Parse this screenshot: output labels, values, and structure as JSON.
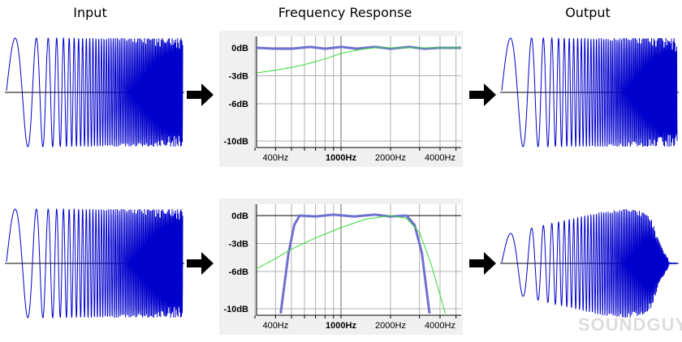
{
  "titles": {
    "input": "Input",
    "freq": "Frequency Response",
    "output": "Output"
  },
  "watermark": "SOUNDGUYS",
  "colors": {
    "wave": "#0000cc",
    "response": "#7070d0",
    "reference": "#33dd33",
    "grid": "#b0b0b0",
    "panel": "#f0f0f0"
  },
  "chart_data": [
    {
      "type": "line",
      "xscale": "log",
      "xlim": [
        307,
        5370
      ],
      "ylim": [
        -10.5,
        1.5
      ],
      "grid": true,
      "y_ticks": [
        "0dB",
        "-3dB",
        "-6dB",
        "-10dB"
      ],
      "y_tick_values": [
        0,
        -3,
        -6,
        -10
      ],
      "x_ticks": [
        "400Hz",
        "1000Hz",
        "2000Hz",
        "4000Hz"
      ],
      "x_tick_values": [
        400,
        1000,
        2000,
        4000
      ],
      "series": [
        {
          "color": "#7070d0",
          "x": [
            307,
            400,
            500,
            650,
            800,
            1000,
            1250,
            1600,
            2000,
            2600,
            3200,
            4000,
            5370
          ],
          "y": [
            0,
            -0.1,
            -0.1,
            0.1,
            -0.1,
            0.1,
            -0.1,
            0.1,
            -0.1,
            0.1,
            -0.1,
            0,
            0
          ]
        },
        {
          "color": "#33dd33",
          "x": [
            307,
            400,
            500,
            600,
            800,
            1000,
            1300,
            1600,
            2000,
            5370
          ],
          "y": [
            -2.7,
            -2.4,
            -2.1,
            -1.8,
            -1.2,
            -0.6,
            -0.2,
            0,
            0,
            0
          ]
        }
      ]
    },
    {
      "type": "line",
      "xscale": "log",
      "xlim": [
        307,
        5370
      ],
      "ylim": [
        -10.5,
        1.5
      ],
      "grid": true,
      "y_ticks": [
        "0dB",
        "-3dB",
        "-6dB",
        "-10dB"
      ],
      "y_tick_values": [
        0,
        -3,
        -6,
        -10
      ],
      "x_ticks": [
        "400Hz",
        "1000Hz",
        "2000Hz",
        "4000Hz"
      ],
      "x_tick_values": [
        400,
        1000,
        2000,
        4000
      ],
      "series": [
        {
          "color": "#7070d0",
          "x": [
            430,
            480,
            520,
            560,
            700,
            900,
            1200,
            1600,
            2000,
            2500,
            2800,
            3100,
            3450
          ],
          "y": [
            -10.5,
            -4,
            -1,
            0,
            -0.1,
            0.1,
            -0.1,
            0.1,
            -0.1,
            0,
            -1,
            -4,
            -10.5
          ]
        },
        {
          "color": "#33dd33",
          "x": [
            307,
            400,
            500,
            700,
            1000,
            1400,
            2000,
            2500,
            3000,
            3500,
            4000,
            4300
          ],
          "y": [
            -5.7,
            -4.6,
            -3.6,
            -2.4,
            -1.3,
            -0.4,
            0,
            -0.3,
            -1.8,
            -5,
            -8.5,
            -10.5
          ]
        }
      ]
    }
  ]
}
